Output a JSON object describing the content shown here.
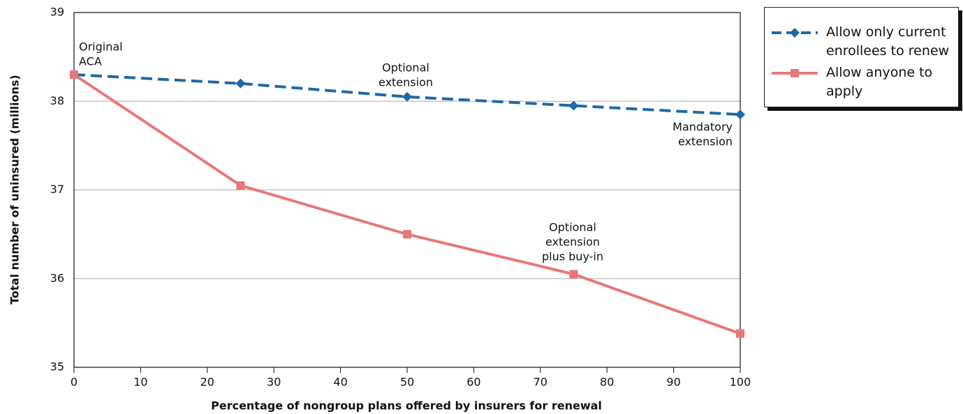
{
  "chart_data": {
    "type": "line",
    "x_label": "Percentage of nongroup plans offered by insurers for renewal",
    "y_label": "Total number of uninsured (millions)",
    "x": [
      0,
      25,
      50,
      75,
      100
    ],
    "series": [
      {
        "name": "Allow only current enrollees to renew",
        "color": "#1f69a6",
        "dash": true,
        "marker": "diamond",
        "values": [
          38.3,
          38.2,
          38.05,
          37.95,
          37.85
        ]
      },
      {
        "name": "Allow anyone to apply",
        "color": "#e8777a",
        "dash": false,
        "marker": "square",
        "values": [
          38.3,
          37.05,
          36.5,
          36.05,
          35.38
        ]
      }
    ],
    "xlim": [
      0,
      100
    ],
    "xticks": [
      0,
      10,
      20,
      30,
      40,
      50,
      60,
      70,
      80,
      90,
      100
    ],
    "ylim": [
      35,
      39
    ],
    "yticks": [
      35,
      36,
      37,
      38,
      39
    ],
    "grid": true,
    "legend": "right",
    "annotations": [
      {
        "lines": [
          "Original",
          "ACA"
        ]
      },
      {
        "lines": [
          "Optional",
          "extension"
        ]
      },
      {
        "lines": [
          "Mandatory",
          "extension"
        ]
      },
      {
        "lines": [
          "Optional",
          "extension",
          "plus buy-in"
        ]
      }
    ]
  }
}
